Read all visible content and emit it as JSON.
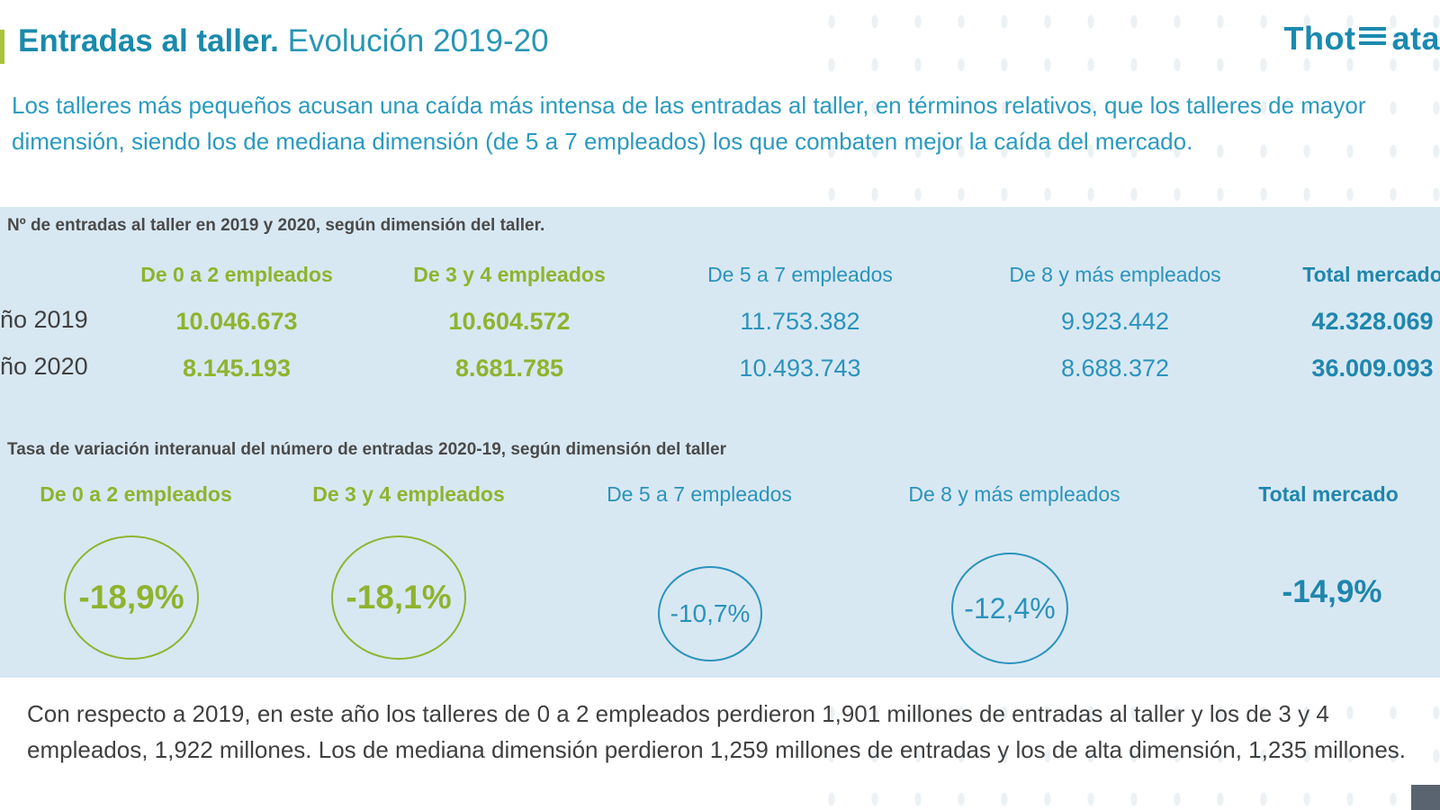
{
  "header": {
    "title_bold": "Entradas al taller.",
    "title_rest": " Evolución 2019-20",
    "logo_left": "Thot",
    "logo_right": "ata"
  },
  "intro": "Los talleres más pequeños acusan una caída más intensa de las entradas al taller, en términos relativos, que los talleres de mayor dimensión, siendo los de mediana dimensión (de 5 a 7 empleados) los que combaten mejor la caída del mercado.",
  "table": {
    "subtitle": "Nº de entradas al taller en 2019 y 2020, según dimensión del taller.",
    "columns": [
      "De 0 a 2 empleados",
      "De 3 y 4 empleados",
      "De 5 a 7 empleados",
      "De 8 y más empleados",
      "Total mercado"
    ],
    "rows": [
      {
        "label": "ño 2019",
        "values": [
          "10.046.673",
          "10.604.572",
          "11.753.382",
          "9.923.442",
          "42.328.069"
        ]
      },
      {
        "label": "ño 2020",
        "values": [
          "8.145.193",
          "8.681.785",
          "10.493.743",
          "8.688.372",
          "36.009.093"
        ]
      }
    ]
  },
  "rates": {
    "subtitle": "Tasa de variación interanual del número de entradas 2020-19, según dimensión del taller",
    "columns": [
      "De 0 a 2 empleados",
      "De 3 y 4 empleados",
      "De 5 a 7 empleados",
      "De 8 y más empleados",
      "Total mercado"
    ],
    "values": [
      "-18,9%",
      "-18,1%",
      "-10,7%",
      "-12,4%",
      "-14,9%"
    ]
  },
  "footer": "Con respecto a 2019, en este año los talleres de 0 a 2 empleados perdieron 1,901 millones de entradas al taller y los de 3 y 4 empleados, 1,922 millones. Los de mediana dimensión perdieron 1,259 millones de entradas y los de alta dimensión, 1,235 millones.",
  "colors": {
    "green": "#8fb32e",
    "blue": "#2a93bb",
    "panel": "#d8e8f3"
  }
}
